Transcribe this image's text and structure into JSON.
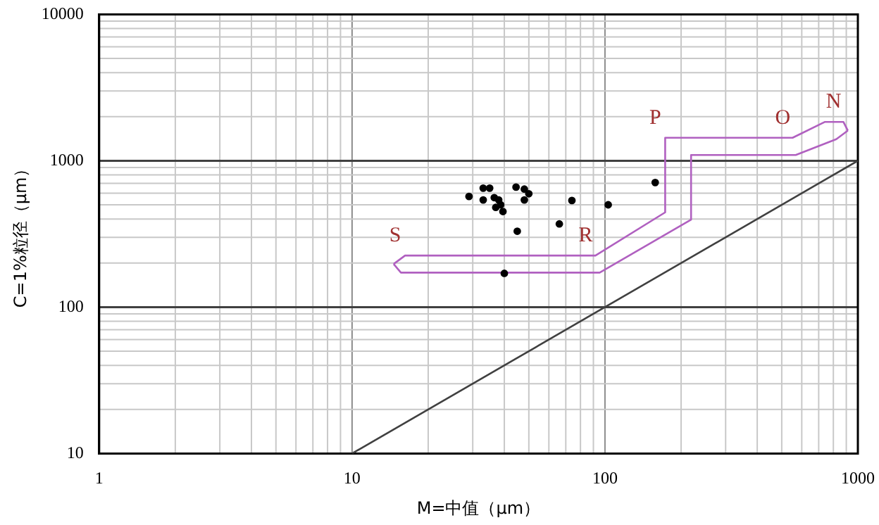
{
  "chart_data": {
    "type": "scatter",
    "xlabel": "M=中值（μm）",
    "ylabel": "C=1%粒径（μm）",
    "log": "xy",
    "grid": true,
    "xlim": [
      1,
      1000
    ],
    "ylim": [
      10,
      10000
    ],
    "xticks": [
      1,
      10,
      100,
      1000
    ],
    "yticks": [
      10,
      100,
      1000,
      10000
    ],
    "series": [
      {
        "color": "#000000",
        "marker": "circle",
        "x": [
          29,
          33,
          35,
          33,
          36.5,
          38,
          38.7,
          37,
          39.5,
          44.5,
          48,
          50,
          48,
          74,
          66,
          45,
          103,
          40,
          158
        ],
        "values": [
          570,
          650,
          650,
          540,
          560,
          540,
          500,
          480,
          450,
          660,
          640,
          595,
          540,
          535,
          370,
          330,
          500,
          170,
          710
        ]
      },
      {
        "type": "line",
        "marker": "none",
        "color": "#404040",
        "x": [
          10,
          1000
        ],
        "values": [
          10,
          1000
        ]
      },
      {
        "type": "line",
        "marker": "none",
        "color": "#b060c0",
        "x": [
          14.6,
          16.2,
          91.7,
          173,
          173,
          552,
          739,
          877,
          913
        ],
        "values": [
          197,
          225,
          225,
          444,
          1435,
          1435,
          1840,
          1840,
          1607
        ]
      },
      {
        "type": "line",
        "marker": "none",
        "color": "#b060c0",
        "x": [
          14.6,
          15.6,
          95.3,
          219,
          219,
          568,
          822,
          913
        ],
        "values": [
          197,
          172,
          172,
          396,
          1094,
          1094,
          1403,
          1607
        ]
      }
    ],
    "annotations": [
      {
        "text": "S",
        "x": 16.2,
        "y": 225
      },
      {
        "text": "R",
        "x": 91.7,
        "y": 225
      },
      {
        "text": "P",
        "x": 173,
        "y": 1435
      },
      {
        "text": "O",
        "x": 552,
        "y": 1435
      },
      {
        "text": "N",
        "x": 877,
        "y": 1840
      }
    ]
  }
}
